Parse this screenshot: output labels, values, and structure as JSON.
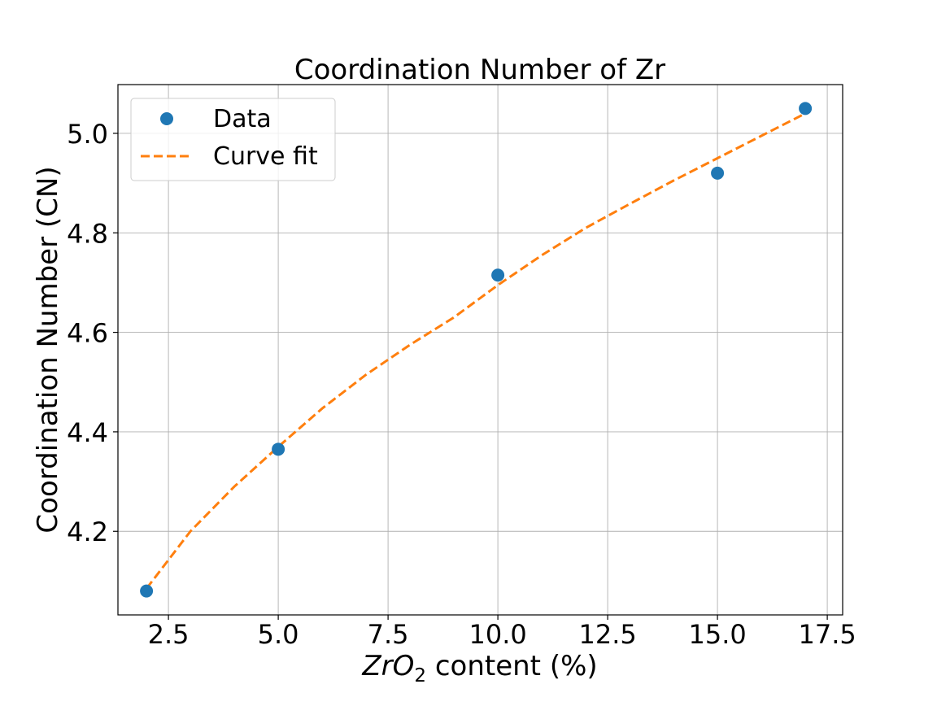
{
  "chart_data": {
    "type": "scatter",
    "title": "Coordination Number of Zr",
    "xlabel": {
      "italic_part": "ZrO",
      "subscript": "2",
      "rest": " content (%)"
    },
    "ylabel": "Coordination Number (CN)",
    "xlim": [
      1.35,
      17.85
    ],
    "ylim": [
      4.032,
      5.098
    ],
    "xticks": [
      2.5,
      5.0,
      7.5,
      10.0,
      12.5,
      15.0,
      17.5
    ],
    "xtick_labels": [
      "2.5",
      "5.0",
      "7.5",
      "10.0",
      "12.5",
      "15.0",
      "17.5"
    ],
    "yticks": [
      4.2,
      4.4,
      4.6,
      4.8,
      5.0
    ],
    "ytick_labels": [
      "4.2",
      "4.4",
      "4.6",
      "4.8",
      "5.0"
    ],
    "grid": true,
    "legend_position": "top-left",
    "series": [
      {
        "name": "Data",
        "kind": "marker",
        "color": "#1f77b4",
        "x": [
          2,
          5,
          10,
          15,
          17
        ],
        "y": [
          4.08,
          4.365,
          4.715,
          4.92,
          5.05
        ]
      },
      {
        "name": "Curve fit",
        "kind": "dashed-line",
        "color": "#ff7f0e",
        "x": [
          2,
          3,
          4,
          5,
          6,
          7,
          8,
          9,
          10,
          11,
          12,
          13,
          14,
          15,
          16,
          17
        ],
        "y": [
          4.085,
          4.2,
          4.29,
          4.37,
          4.447,
          4.515,
          4.575,
          4.63,
          4.695,
          4.755,
          4.81,
          4.858,
          4.905,
          4.95,
          4.995,
          5.04
        ]
      }
    ]
  }
}
